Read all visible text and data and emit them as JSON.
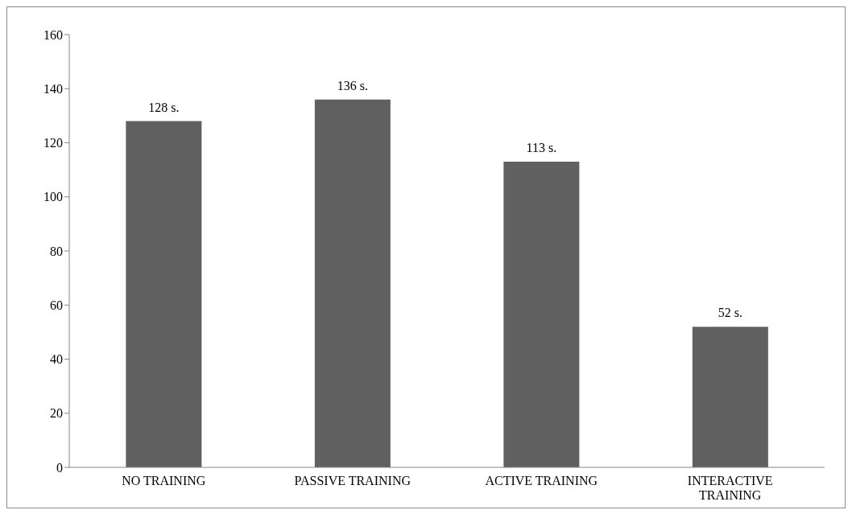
{
  "chart_data": {
    "type": "bar",
    "categories": [
      "NO TRAINING",
      "PASSIVE TRAINING",
      "ACTIVE TRAINING",
      "INTERACTIVE TRAINING"
    ],
    "values": [
      128,
      136,
      113,
      52
    ],
    "color": "#606060",
    "value_labels": [
      "128 s.",
      "136 s.",
      "113 s.",
      "52 s."
    ],
    "ylim": [
      0,
      160
    ],
    "yticks": [
      0,
      20,
      40,
      60,
      80,
      100,
      120,
      140,
      160
    ],
    "grid": false,
    "legend": false
  }
}
